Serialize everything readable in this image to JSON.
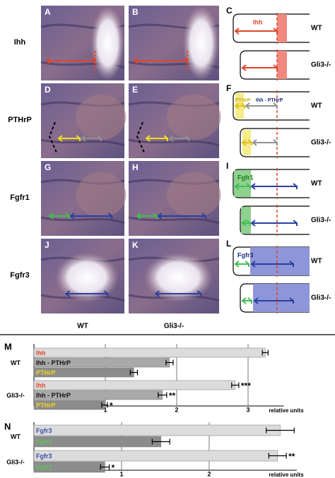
{
  "figure": {
    "row_labels": [
      "Ihh",
      "PTHrP",
      "Fgfr1",
      "Fgfr3"
    ],
    "column_labels": [
      "WT",
      "Gli3-/-"
    ],
    "image_panels": [
      {
        "letter": "A"
      },
      {
        "letter": "B"
      },
      {
        "letter": "D"
      },
      {
        "letter": "E"
      },
      {
        "letter": "G"
      },
      {
        "letter": "H"
      },
      {
        "letter": "J"
      },
      {
        "letter": "K"
      }
    ],
    "schematics": [
      {
        "letter": "C",
        "labels": [
          "Ihh"
        ]
      },
      {
        "letter": "F",
        "labels": [
          "PTHrP",
          "Ihh - PTHrP"
        ]
      },
      {
        "letter": "I",
        "labels": [
          "Fgfr1"
        ]
      },
      {
        "letter": "L",
        "labels": [
          "Fgfr3"
        ]
      }
    ]
  },
  "chart_data": [
    {
      "type": "bar",
      "panel": "M",
      "orientation": "horizontal",
      "categories": [
        "WT",
        "Gli3-/-"
      ],
      "series": [
        {
          "name": "Ihh",
          "color": "#dcdcdc",
          "label_color": "#e0452b",
          "values": [
            3.24,
            2.82
          ],
          "errors": [
            0.04,
            0.05
          ],
          "annotations": [
            null,
            "***"
          ]
        },
        {
          "name": "Ihh - PTHrP",
          "color": "#a9a9a9",
          "label_color": "#111111",
          "values": [
            1.9,
            1.8
          ],
          "errors": [
            0.05,
            0.06
          ],
          "annotations": [
            null,
            "**"
          ]
        },
        {
          "name": "PTHrP",
          "color": "#8c8c8c",
          "label_color": "#f2d21b",
          "values": [
            1.4,
            0.99
          ],
          "errors": [
            0.05,
            0.04
          ],
          "annotations": [
            null,
            "*"
          ]
        }
      ],
      "xlim": [
        0,
        3.5
      ],
      "xticks": [
        1,
        2,
        3
      ],
      "grid": true,
      "xlabel": "relative units"
    },
    {
      "type": "bar",
      "panel": "N",
      "orientation": "horizontal",
      "categories": [
        "WT",
        "Gli3-/-"
      ],
      "series": [
        {
          "name": "Fgfr3",
          "color": "#dcdcdc",
          "label_color": "#3a4fa8",
          "values": [
            2.81,
            2.78
          ],
          "errors": [
            0.16,
            0.1
          ],
          "annotations": [
            null,
            "**"
          ]
        },
        {
          "name": "Fgfr1",
          "color": "#8c8c8c",
          "label_color": "#5cc45c",
          "values": [
            1.45,
            0.81
          ],
          "errors": [
            0.1,
            0.05
          ],
          "annotations": [
            null,
            "*"
          ]
        }
      ],
      "xlim": [
        0,
        3
      ],
      "xticks": [
        1,
        2
      ],
      "grid": true,
      "xlabel": "relative units"
    }
  ]
}
